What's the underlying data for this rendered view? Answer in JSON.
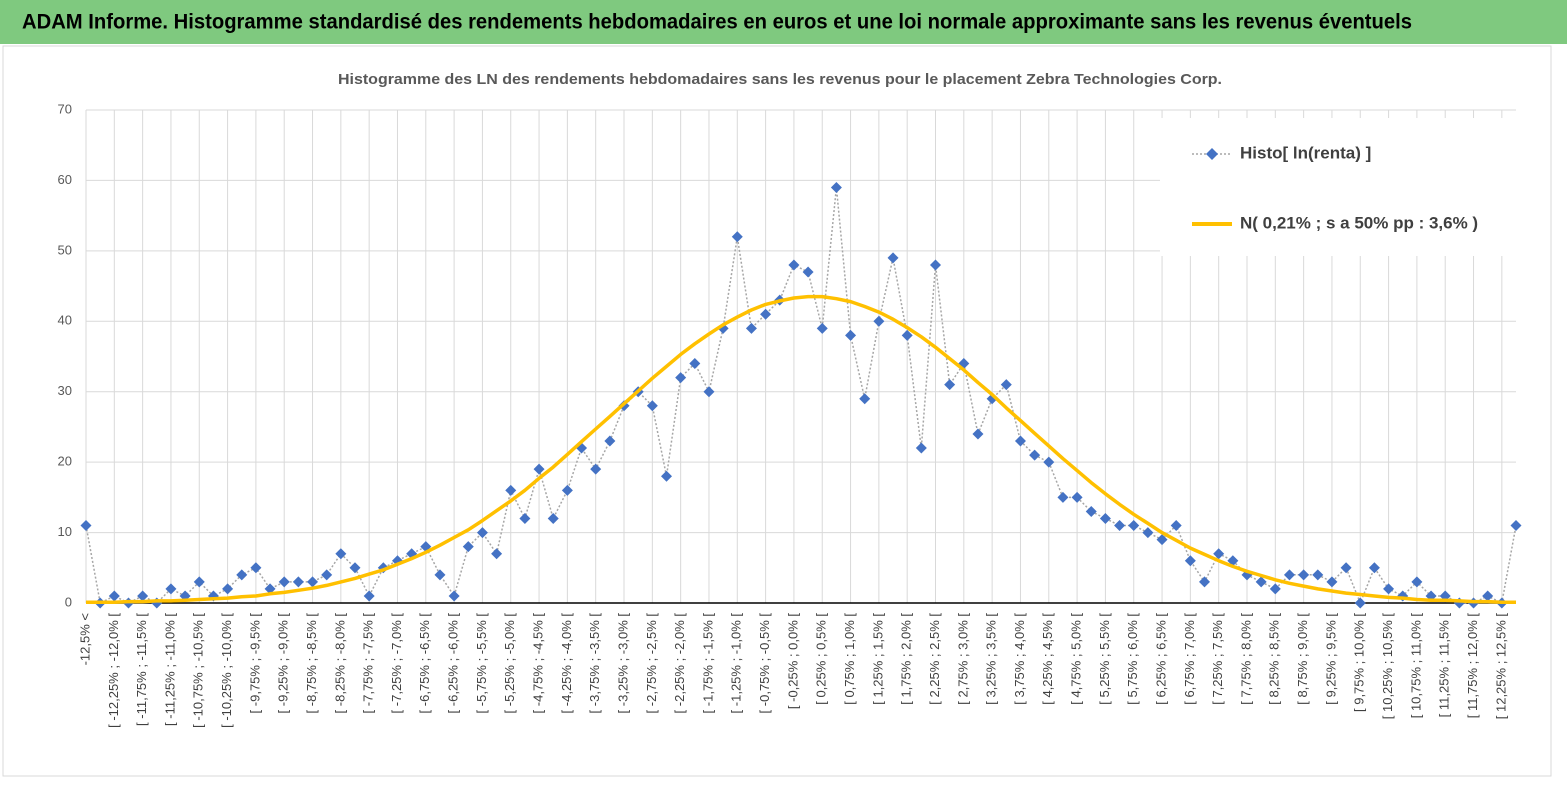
{
  "header": {
    "title": "ADAM Informe. Histogramme standardisé des rendements hebdomadaires en euros et une loi normale approximante sans les revenus éventuels"
  },
  "chart_data": {
    "type": "line",
    "title": "Histogramme des LN des rendements hebdomadaires sans les revenus pour le placement Zebra Technologies Corp.",
    "categories": [
      "-12,5% <",
      null,
      "[ -12,25% ; -12,0% [",
      null,
      "[ -11,75% ; -11,5% [",
      null,
      "[ -11,25% ; -11,0% [",
      null,
      "[ -10,75% ; -10,5% [",
      null,
      "[ -10,25% ; -10,0% [",
      null,
      "[ -9,75% ; -9,5% [",
      null,
      "[ -9,25% ; -9,0% [",
      null,
      "[ -8,75% ; -8,5% [",
      null,
      "[ -8,25% ; -8,0% [",
      null,
      "[ -7,75% ; -7,5% [",
      null,
      "[ -7,25% ; -7,0% [",
      null,
      "[ -6,75% ; -6,5% [",
      null,
      "[ -6,25% ; -6,0% [",
      null,
      "[ -5,75% ; -5,5% [",
      null,
      "[ -5,25% ; -5,0% [",
      null,
      "[ -4,75% ; -4,5% [",
      null,
      "[ -4,25% ; -4,0% [",
      null,
      "[ -3,75% ; -3,5% [",
      null,
      "[ -3,25% ; -3,0% [",
      null,
      "[ -2,75% ; -2,5% [",
      null,
      "[ -2,25% ; -2,0% [",
      null,
      "[ -1,75% ; -1,5% [",
      null,
      "[ -1,25% ; -1,0% [",
      null,
      "[ -0,75% ; -0,5% [",
      null,
      "[ -0,25% ; 0,0% [",
      null,
      "[ 0,25% ; 0,5% [",
      null,
      "[ 0,75% ; 1,0% [",
      null,
      "[ 1,25% ; 1,5% [",
      null,
      "[ 1,75% ; 2,0% [",
      null,
      "[ 2,25% ; 2,5% [",
      null,
      "[ 2,75% ; 3,0% [",
      null,
      "[ 3,25% ; 3,5% [",
      null,
      "[ 3,75% ; 4,0% [",
      null,
      "[ 4,25% ; 4,5% [",
      null,
      "[ 4,75% ; 5,0% [",
      null,
      "[ 5,25% ; 5,5% [",
      null,
      "[ 5,75% ; 6,0% [",
      null,
      "[ 6,25% ; 6,5% [",
      null,
      "[ 6,75% ; 7,0% [",
      null,
      "[ 7,25% ; 7,5% [",
      null,
      "[ 7,75% ; 8,0% [",
      null,
      "[ 8,25% ; 8,5% [",
      null,
      "[ 8,75% ; 9,0% [",
      null,
      "[ 9,25% ; 9,5% [",
      null,
      "[ 9,75% ; 10,0% [",
      null,
      "[ 10,25% ; 10,5% [",
      null,
      "[ 10,75% ; 11,0% [",
      null,
      "[ 11,25% ; 11,5% [",
      null,
      "[ 11,75% ; 12,0% [",
      null,
      "[ 12,25% ; 12,5% [",
      null
    ],
    "series": [
      {
        "name": "Histo[ ln(renta) ]",
        "color": "#4472c4",
        "line_color": "#a6a6a6",
        "marker": "diamond",
        "values": [
          11,
          0,
          1,
          0,
          1,
          0,
          2,
          1,
          3,
          1,
          2,
          4,
          5,
          2,
          3,
          3,
          3,
          4,
          7,
          5,
          1,
          5,
          6,
          7,
          8,
          4,
          1,
          8,
          10,
          7,
          16,
          12,
          19,
          12,
          16,
          22,
          19,
          23,
          28,
          30,
          28,
          18,
          32,
          34,
          30,
          39,
          52,
          39,
          41,
          43,
          48,
          47,
          39,
          59,
          38,
          29,
          40,
          49,
          38,
          22,
          48,
          31,
          34,
          24,
          29,
          31,
          23,
          21,
          20,
          15,
          15,
          13,
          12,
          11,
          11,
          10,
          9,
          11,
          6,
          3,
          7,
          6,
          4,
          3,
          2,
          4,
          4,
          4,
          3,
          5,
          0,
          5,
          2,
          1,
          3,
          1,
          1,
          0,
          0,
          1,
          0,
          11
        ]
      },
      {
        "name": "N( 0,21% ; s a 50% pp : 3,6% )",
        "color": "#ffc000",
        "values": [
          0.1,
          0.1,
          0.1,
          0.2,
          0.2,
          0.3,
          0.3,
          0.4,
          0.5,
          0.6,
          0.7,
          0.9,
          1.0,
          1.3,
          1.5,
          1.8,
          2.1,
          2.5,
          3.0,
          3.5,
          4.1,
          4.7,
          5.5,
          6.3,
          7.2,
          8.2,
          9.3,
          10.4,
          11.7,
          13.1,
          14.5,
          16.0,
          17.7,
          19.3,
          21.1,
          22.9,
          24.7,
          26.5,
          28.3,
          30.1,
          31.9,
          33.6,
          35.3,
          36.8,
          38.2,
          39.5,
          40.6,
          41.6,
          42.4,
          42.9,
          43.3,
          43.5,
          43.5,
          43.2,
          42.8,
          42.1,
          41.3,
          40.3,
          39.1,
          37.8,
          36.3,
          34.7,
          33.1,
          31.3,
          29.6,
          27.7,
          25.9,
          24.1,
          22.3,
          20.5,
          18.8,
          17.1,
          15.5,
          14.0,
          12.6,
          11.3,
          10.0,
          8.9,
          7.8,
          6.9,
          6.0,
          5.2,
          4.5,
          3.9,
          3.3,
          2.8,
          2.4,
          2.0,
          1.7,
          1.4,
          1.2,
          1.0,
          0.8,
          0.7,
          0.5,
          0.4,
          0.4,
          0.3,
          0.2,
          0.2,
          0.1,
          0.1
        ]
      }
    ],
    "ylim": [
      0,
      70
    ],
    "yticks": [
      0,
      10,
      20,
      30,
      40,
      50,
      60,
      70
    ],
    "grid": true,
    "legend": "upper right"
  }
}
